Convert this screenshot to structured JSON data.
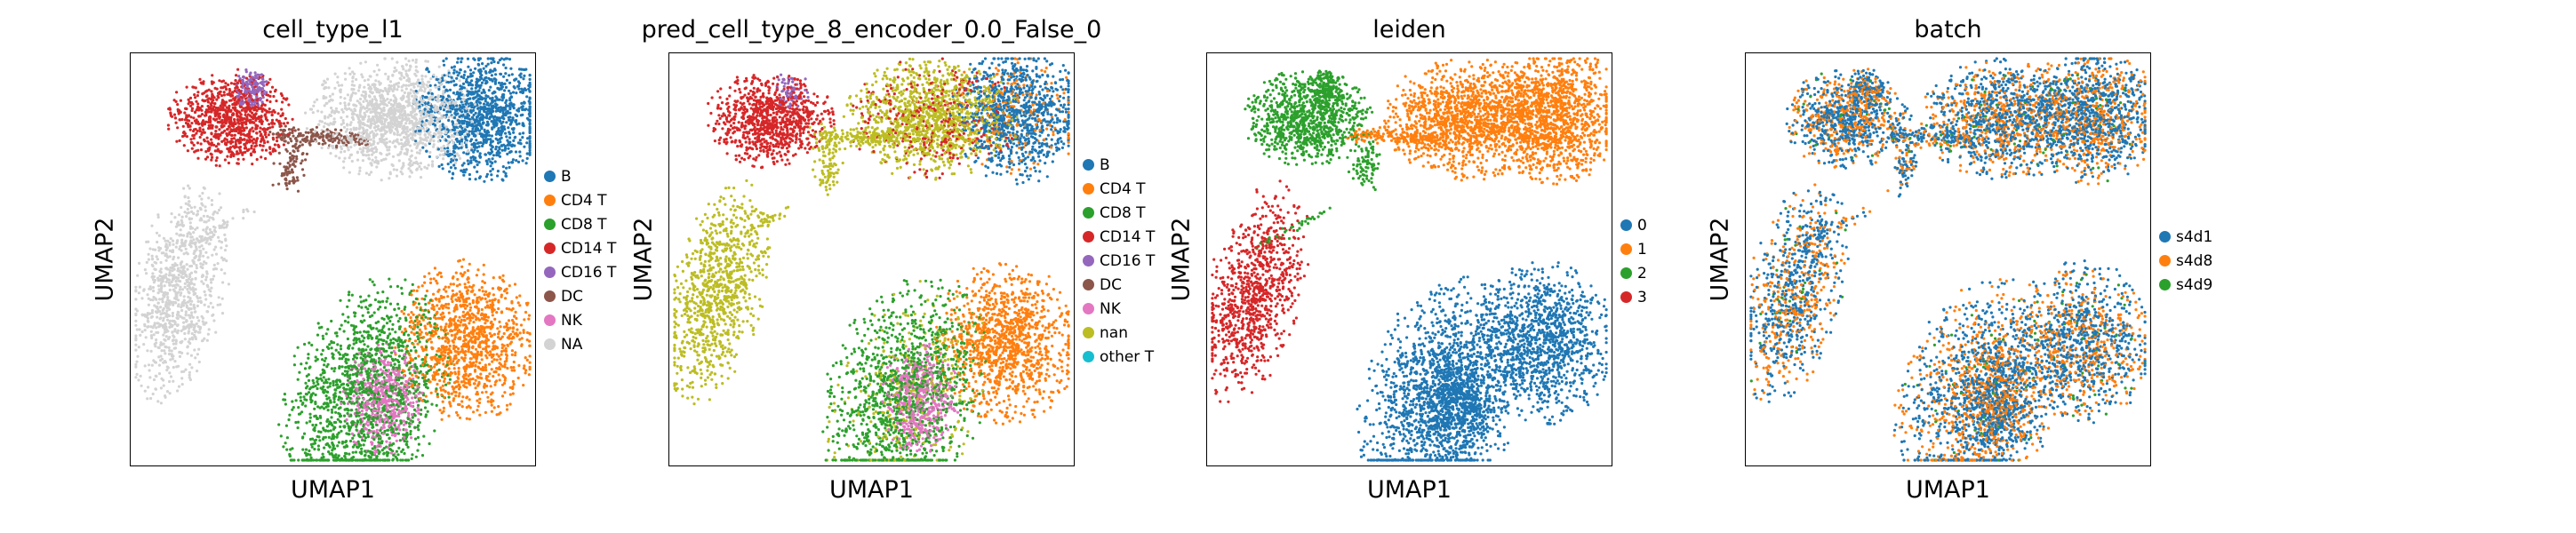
{
  "chart_data": [
    {
      "type": "scatter",
      "title": "cell_type_l1",
      "xlabel": "UMAP1",
      "ylabel": "UMAP2",
      "legend": "right",
      "categories": [
        {
          "name": "B",
          "color": "#1f77b4"
        },
        {
          "name": "CD4 T",
          "color": "#ff7f0e"
        },
        {
          "name": "CD8 T",
          "color": "#2ca02c"
        },
        {
          "name": "CD14 T",
          "color": "#d62728"
        },
        {
          "name": "CD16 T",
          "color": "#9467bd"
        },
        {
          "name": "DC",
          "color": "#8c564b"
        },
        {
          "name": "NK",
          "color": "#e377c2"
        },
        {
          "name": "NA",
          "color": "#d3d3d3"
        }
      ]
    },
    {
      "type": "scatter",
      "title": "pred_cell_type_8_encoder_0.0_False_0",
      "xlabel": "UMAP1",
      "ylabel": "UMAP2",
      "legend": "right",
      "categories": [
        {
          "name": "B",
          "color": "#1f77b4"
        },
        {
          "name": "CD4 T",
          "color": "#ff7f0e"
        },
        {
          "name": "CD8 T",
          "color": "#2ca02c"
        },
        {
          "name": "CD14 T",
          "color": "#d62728"
        },
        {
          "name": "CD16 T",
          "color": "#9467bd"
        },
        {
          "name": "DC",
          "color": "#8c564b"
        },
        {
          "name": "NK",
          "color": "#e377c2"
        },
        {
          "name": "nan",
          "color": "#bcbd22"
        },
        {
          "name": "other T",
          "color": "#17becf"
        }
      ]
    },
    {
      "type": "scatter",
      "title": "leiden",
      "xlabel": "UMAP1",
      "ylabel": "UMAP2",
      "legend": "right",
      "categories": [
        {
          "name": "0",
          "color": "#1f77b4"
        },
        {
          "name": "1",
          "color": "#ff7f0e"
        },
        {
          "name": "2",
          "color": "#2ca02c"
        },
        {
          "name": "3",
          "color": "#d62728"
        }
      ]
    },
    {
      "type": "scatter",
      "title": "batch",
      "xlabel": "UMAP1",
      "ylabel": "UMAP2",
      "legend": "right",
      "categories": [
        {
          "name": "s4d1",
          "color": "#1f77b4"
        },
        {
          "name": "s4d8",
          "color": "#ff7f0e"
        },
        {
          "name": "s4d9",
          "color": "#2ca02c"
        }
      ]
    }
  ]
}
